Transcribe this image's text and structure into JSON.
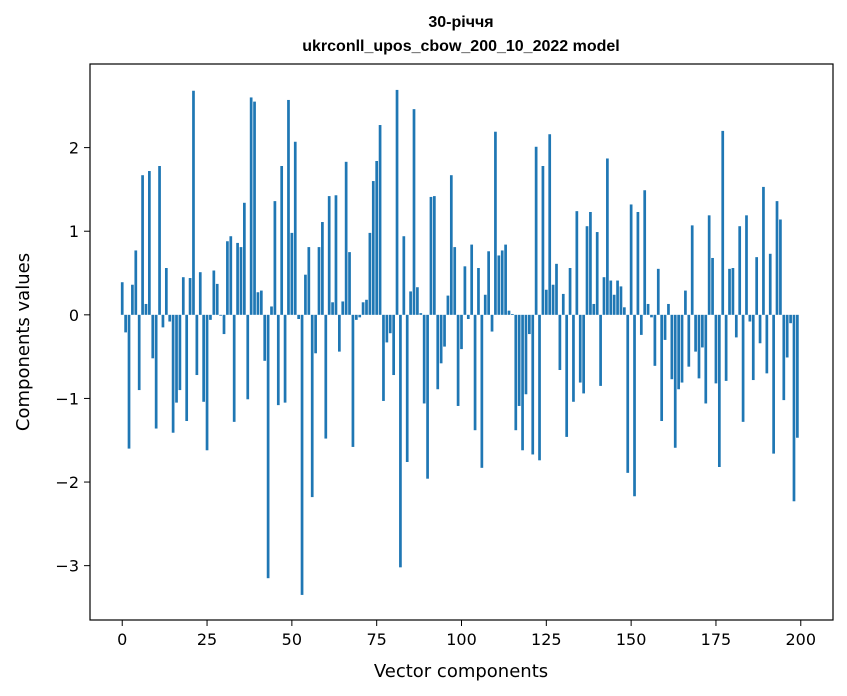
{
  "chart_data": {
    "type": "bar",
    "title": "30-річчя",
    "subtitle": "ukrconll_upos_cbow_200_10_2022 model",
    "xlabel": "Vector components",
    "ylabel": "Components values",
    "xlim": [
      -9.5,
      209.5
    ],
    "ylim": [
      -3.65,
      3.0
    ],
    "xticks": [
      0,
      25,
      50,
      75,
      100,
      125,
      150,
      175,
      200
    ],
    "xtick_labels": [
      "0",
      "25",
      "50",
      "75",
      "100",
      "125",
      "150",
      "175",
      "200"
    ],
    "yticks": [
      -3,
      -2,
      -1,
      0,
      1,
      2
    ],
    "ytick_labels": [
      "−3",
      "−2",
      "−1",
      "0",
      "1",
      "2"
    ],
    "grid": false,
    "bar_color": "#1f77b4",
    "x": [
      0,
      1,
      2,
      3,
      4,
      5,
      6,
      7,
      8,
      9,
      10,
      11,
      12,
      13,
      14,
      15,
      16,
      17,
      18,
      19,
      20,
      21,
      22,
      23,
      24,
      25,
      26,
      27,
      28,
      29,
      30,
      31,
      32,
      33,
      34,
      35,
      36,
      37,
      38,
      39,
      40,
      41,
      42,
      43,
      44,
      45,
      46,
      47,
      48,
      49,
      50,
      51,
      52,
      53,
      54,
      55,
      56,
      57,
      58,
      59,
      60,
      61,
      62,
      63,
      64,
      65,
      66,
      67,
      68,
      69,
      70,
      71,
      72,
      73,
      74,
      75,
      76,
      77,
      78,
      79,
      80,
      81,
      82,
      83,
      84,
      85,
      86,
      87,
      88,
      89,
      90,
      91,
      92,
      93,
      94,
      95,
      96,
      97,
      98,
      99,
      100,
      101,
      102,
      103,
      104,
      105,
      106,
      107,
      108,
      109,
      110,
      111,
      112,
      113,
      114,
      115,
      116,
      117,
      118,
      119,
      120,
      121,
      122,
      123,
      124,
      125,
      126,
      127,
      128,
      129,
      130,
      131,
      132,
      133,
      134,
      135,
      136,
      137,
      138,
      139,
      140,
      141,
      142,
      143,
      144,
      145,
      146,
      147,
      148,
      149,
      150,
      151,
      152,
      153,
      154,
      155,
      156,
      157,
      158,
      159,
      160,
      161,
      162,
      163,
      164,
      165,
      166,
      167,
      168,
      169,
      170,
      171,
      172,
      173,
      174,
      175,
      176,
      177,
      178,
      179,
      180,
      181,
      182,
      183,
      184,
      185,
      186,
      187,
      188,
      189,
      190,
      191,
      192,
      193,
      194,
      195,
      196,
      197,
      198,
      199
    ],
    "values": [
      0.39,
      -0.21,
      -1.6,
      0.36,
      0.77,
      -0.9,
      1.67,
      0.13,
      1.72,
      -0.52,
      -1.36,
      1.78,
      -0.15,
      0.56,
      -0.08,
      -1.41,
      -1.05,
      -0.9,
      0.45,
      -1.27,
      0.44,
      2.68,
      -0.72,
      0.51,
      -1.04,
      -1.62,
      -0.06,
      0.53,
      0.37,
      -0.01,
      -0.23,
      0.88,
      0.94,
      -1.28,
      0.86,
      0.81,
      1.34,
      -1.01,
      2.6,
      2.55,
      0.27,
      0.29,
      -0.55,
      -3.15,
      0.1,
      1.36,
      -1.08,
      1.78,
      -1.05,
      2.57,
      0.98,
      2.07,
      -0.05,
      -3.35,
      0.48,
      0.81,
      -2.18,
      -0.46,
      0.81,
      1.11,
      -1.48,
      1.42,
      0.15,
      1.43,
      -0.44,
      0.16,
      1.83,
      0.75,
      -1.58,
      -0.06,
      -0.03,
      0.15,
      0.18,
      0.98,
      1.6,
      1.84,
      2.27,
      -1.03,
      -0.33,
      -0.22,
      -0.72,
      2.69,
      -3.02,
      0.94,
      -1.76,
      0.28,
      2.46,
      0.33,
      0.02,
      -1.06,
      -1.96,
      1.41,
      1.42,
      -0.89,
      -0.58,
      -0.38,
      0.23,
      1.67,
      0.81,
      -1.09,
      -0.41,
      0.58,
      -0.05,
      0.84,
      -1.38,
      0.56,
      -1.83,
      0.24,
      0.76,
      -0.2,
      2.19,
      0.71,
      0.77,
      0.84,
      0.05,
      0.01,
      -1.38,
      -1.09,
      -1.62,
      -0.95,
      -0.23,
      -1.67,
      2.01,
      -1.74,
      1.78,
      0.3,
      2.16,
      0.36,
      0.61,
      -0.66,
      0.25,
      -1.46,
      0.56,
      -1.04,
      1.24,
      -0.81,
      -0.94,
      1.06,
      1.23,
      0.13,
      0.99,
      -0.85,
      0.45,
      1.87,
      0.41,
      0.24,
      0.41,
      0.34,
      0.09,
      -1.89,
      1.32,
      -2.17,
      1.23,
      -0.24,
      1.49,
      0.13,
      -0.03,
      -0.61,
      0.55,
      -1.27,
      -0.3,
      0.13,
      -0.77,
      -1.59,
      -0.89,
      -0.81,
      0.29,
      -0.62,
      1.07,
      -0.44,
      -0.76,
      -0.39,
      -1.06,
      1.19,
      0.68,
      -0.82,
      -1.82,
      2.2,
      -0.79,
      0.55,
      0.56,
      -0.27,
      1.06,
      -1.28,
      1.19,
      -0.08,
      -0.78,
      0.69,
      -0.34,
      1.53,
      -0.7,
      0.73,
      -1.66,
      1.36,
      1.14,
      -1.02,
      -0.51,
      -0.1,
      -2.23,
      -1.47
    ]
  }
}
